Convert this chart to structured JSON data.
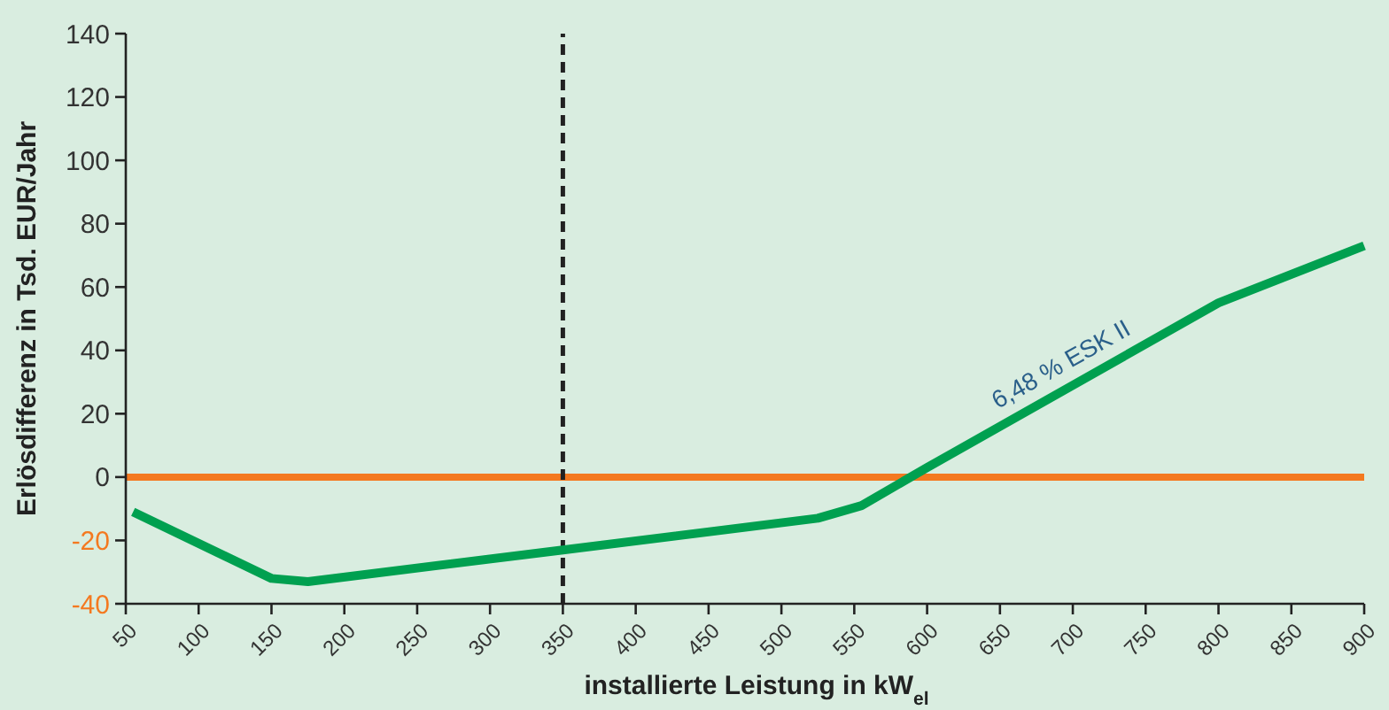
{
  "chart_data": {
    "type": "line",
    "xlabel": "installierte Leistung in kW$_{el}$",
    "ylabel": "Erlösdifferenz in Tsd. EUR/Jahr",
    "xlim": [
      50,
      900
    ],
    "ylim": [
      -40,
      140
    ],
    "xticks": [
      50,
      100,
      150,
      200,
      250,
      300,
      350,
      400,
      450,
      500,
      550,
      600,
      650,
      700,
      750,
      800,
      850,
      900
    ],
    "yticks": [
      -40,
      -20,
      0,
      20,
      40,
      60,
      80,
      100,
      120,
      140
    ],
    "series": [
      {
        "name": "6,48 % ESK II",
        "color": "#00a050",
        "x": [
          55,
          150,
          175,
          350,
          525,
          555,
          600,
          800,
          900
        ],
        "values": [
          -11,
          -32,
          -33,
          -23,
          -13,
          -9,
          3,
          55,
          73
        ]
      }
    ],
    "ref_lines": [
      {
        "axis": "y",
        "value": 0,
        "color": "#f47920",
        "line_style": "solid"
      },
      {
        "axis": "x",
        "value": 350,
        "color": "#222222",
        "line_style": "dashed"
      }
    ],
    "grid": false
  }
}
